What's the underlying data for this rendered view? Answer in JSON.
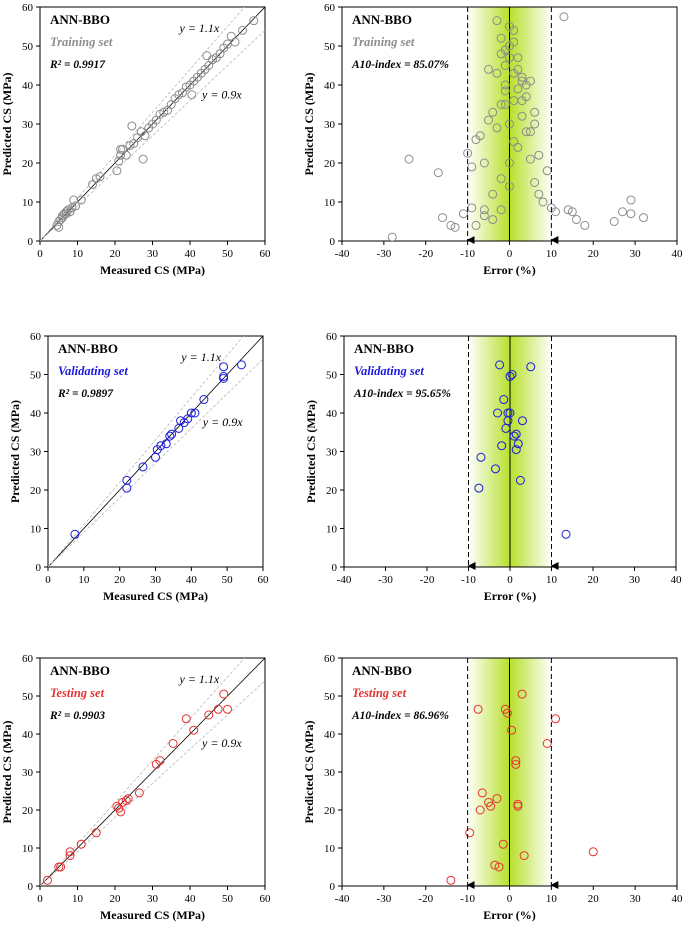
{
  "chart_data": [
    {
      "type": "scatter",
      "model_label": "ANN-BBO",
      "set_label": "Training set",
      "stat_label": "R² = 0.9917",
      "line_labels": {
        "upper": "y = 1.1x",
        "lower": "y = 0.9x"
      },
      "xlabel": "Measured CS (MPa)",
      "ylabel": "Predicted CS (MPa)",
      "xlim": [
        0,
        60
      ],
      "ylim": [
        0,
        60
      ],
      "xticks": [
        "0",
        "10",
        "20",
        "30",
        "40",
        "50",
        "60"
      ],
      "yticks": [
        "0",
        "10",
        "20",
        "30",
        "40",
        "50",
        "60"
      ],
      "color": "#8c8c8c",
      "x": [
        4.5,
        5.0,
        5.5,
        6.0,
        6.5,
        7.0,
        7.5,
        8.0,
        8.5,
        9.0,
        9.5,
        6.0,
        7.0,
        8.0,
        14.0,
        15.0,
        16.0,
        20.5,
        21.0,
        21.5,
        22.0,
        23.0,
        24.0,
        25.0,
        26.0,
        27.0,
        28.0,
        29.0,
        30.0,
        31.0,
        32.0,
        33.0,
        34.0,
        35.0,
        36.0,
        37.0,
        38.0,
        39.0,
        40.0,
        41.0,
        42.0,
        43.0,
        44.0,
        45.0,
        46.0,
        47.0,
        48.0,
        49.0,
        50.0,
        51.0,
        52.0,
        54.0,
        57.0,
        40.5,
        44.5,
        27.5,
        24.5,
        21.5,
        11.0,
        5.0
      ],
      "y": [
        4.0,
        5.0,
        5.5,
        6.5,
        7.0,
        7.5,
        8.0,
        7.5,
        8.5,
        10.5,
        9.0,
        6.0,
        7.0,
        7.5,
        14.5,
        16.0,
        16.5,
        18.0,
        20.5,
        22.0,
        23.5,
        22.0,
        24.5,
        25.0,
        26.5,
        28.0,
        27.0,
        29.0,
        30.0,
        31.0,
        32.5,
        33.0,
        33.5,
        35.0,
        36.5,
        37.5,
        38.0,
        39.5,
        40.0,
        41.0,
        42.0,
        43.0,
        44.0,
        45.0,
        46.5,
        47.0,
        48.0,
        49.5,
        50.5,
        52.5,
        51.0,
        54.0,
        56.5,
        37.5,
        47.5,
        21.0,
        29.5,
        23.5,
        10.5,
        3.5
      ]
    },
    {
      "type": "scatter",
      "model_label": "ANN-BBO",
      "set_label": "Training set",
      "stat_label": "A10-index = 85.07%",
      "xlabel": "Error (%)",
      "ylabel": "Predicted CS (MPa)",
      "xlim": [
        -40,
        40
      ],
      "ylim": [
        0,
        60
      ],
      "xticks": [
        "-40",
        "-30",
        "-20",
        "-10",
        "0",
        "10",
        "20",
        "30",
        "40"
      ],
      "yticks": [
        "0",
        "10",
        "20",
        "30",
        "40",
        "50",
        "60"
      ],
      "color": "#8c8c8c",
      "x": [
        -28,
        -24,
        -17,
        -16,
        -14,
        -13,
        -10,
        -9,
        -8,
        -7,
        -6,
        -5,
        -4,
        -3,
        -2,
        -1,
        0,
        1,
        2,
        3,
        4,
        5,
        6,
        -6,
        -4,
        -2,
        0,
        2,
        4,
        6,
        8,
        -3,
        -1,
        1,
        3,
        5,
        7,
        9,
        -5,
        -2,
        0,
        2,
        4,
        6,
        -8,
        -6,
        -4,
        -2,
        0,
        1,
        3,
        5,
        7,
        -1,
        0,
        1,
        2,
        3,
        -3,
        -2,
        -1,
        0,
        13,
        14,
        15,
        16,
        18,
        25,
        27,
        29,
        29,
        32,
        -11,
        -9,
        10,
        11,
        -1,
        1
      ],
      "y": [
        1.0,
        21.0,
        17.5,
        6.0,
        4.0,
        3.5,
        22.5,
        19.0,
        26.0,
        27.0,
        20.0,
        31.0,
        33.0,
        29.0,
        35.0,
        45.0,
        47.0,
        43.0,
        39.0,
        36.0,
        37.0,
        41.0,
        33.0,
        8.0,
        12.0,
        16.0,
        20.0,
        24.0,
        28.0,
        15.0,
        10.0,
        43.0,
        49.0,
        51.0,
        41.0,
        28.0,
        22.0,
        18.0,
        44.0,
        48.0,
        50.0,
        44.0,
        40.0,
        30.0,
        4.0,
        6.5,
        5.5,
        8.0,
        14.0,
        25.5,
        32.0,
        21.0,
        12.0,
        38.5,
        55.0,
        54.0,
        47.0,
        42.0,
        56.5,
        52.0,
        40.0,
        30.0,
        57.5,
        8.0,
        7.5,
        5.5,
        4.0,
        5.0,
        7.5,
        7.0,
        10.5,
        6.0,
        7.0,
        8.5,
        8.5,
        7.5,
        35.0,
        36.0
      ]
    },
    {
      "type": "scatter",
      "model_label": "ANN-BBO",
      "set_label": "Validating set",
      "stat_label": "R² = 0.9897",
      "line_labels": {
        "upper": "y = 1.1x",
        "lower": "y = 0.9x"
      },
      "xlabel": "Measured CS (MPa)",
      "ylabel": "Predicted CS (MPa)",
      "xlim": [
        0,
        60
      ],
      "ylim": [
        0,
        60
      ],
      "xticks": [
        "0",
        "10",
        "20",
        "30",
        "40",
        "50",
        "60"
      ],
      "yticks": [
        "0",
        "10",
        "20",
        "30",
        "40",
        "50",
        "60"
      ],
      "color": "#1a1adf",
      "x": [
        7.5,
        22.0,
        22.0,
        26.5,
        30.0,
        30.5,
        31.5,
        33.0,
        34.0,
        34.5,
        36.5,
        37.0,
        38.0,
        39.0,
        40.0,
        41.0,
        43.5,
        49.0,
        49.0,
        49.0,
        54.0
      ],
      "y": [
        8.5,
        20.5,
        22.5,
        26.0,
        28.5,
        30.5,
        31.5,
        32.0,
        34.0,
        34.5,
        36.0,
        38.0,
        37.5,
        38.5,
        40.0,
        40.0,
        43.5,
        49.0,
        49.5,
        52.0,
        52.5
      ]
    },
    {
      "type": "scatter",
      "model_label": "ANN-BBO",
      "set_label": "Validating set",
      "stat_label": "A10-index = 95.65%",
      "xlabel": "Error (%)",
      "ylabel": "Predicted CS (MPa)",
      "xlim": [
        -40,
        40
      ],
      "ylim": [
        0,
        60
      ],
      "xticks": [
        "-40",
        "-30",
        "-20",
        "-10",
        "0",
        "10",
        "20",
        "30",
        "40"
      ],
      "yticks": [
        "0",
        "10",
        "20",
        "30",
        "40",
        "50",
        "60"
      ],
      "color": "#1a1adf",
      "x": [
        -7.5,
        -7.0,
        -3.5,
        -3.0,
        -2.5,
        -2.0,
        -1.5,
        -1.0,
        -0.5,
        -0.5,
        0.0,
        0.0,
        0.5,
        1.0,
        1.5,
        1.5,
        2.0,
        2.5,
        3.0,
        5.0,
        13.5
      ],
      "y": [
        20.5,
        28.5,
        25.5,
        40.0,
        52.5,
        31.5,
        43.5,
        36.0,
        40.0,
        38.0,
        49.5,
        40.0,
        50.0,
        34.0,
        34.5,
        30.5,
        32.0,
        22.5,
        38.0,
        52.0,
        8.5
      ]
    },
    {
      "type": "scatter",
      "model_label": "ANN-BBO",
      "set_label": "Testing set",
      "stat_label": "R² = 0.9903",
      "line_labels": {
        "upper": "y = 1.1x",
        "lower": "y = 0.9x"
      },
      "xlabel": "Measured CS (MPa)",
      "ylabel": "Predicted CS (MPa)",
      "xlim": [
        0,
        60
      ],
      "ylim": [
        0,
        60
      ],
      "xticks": [
        "0",
        "10",
        "20",
        "30",
        "40",
        "50",
        "60"
      ],
      "yticks": [
        "0",
        "10",
        "20",
        "30",
        "40",
        "50",
        "60"
      ],
      "color": "#e63232",
      "x": [
        2.0,
        5.0,
        5.5,
        8.0,
        8.0,
        11.0,
        15.0,
        20.5,
        21.0,
        21.5,
        22.0,
        23.0,
        23.5,
        26.5,
        31.0,
        32.0,
        35.5,
        39.0,
        41.0,
        45.0,
        47.5,
        49.0,
        50.0
      ],
      "y": [
        1.5,
        5.0,
        5.0,
        8.0,
        9.0,
        11.0,
        14.0,
        21.0,
        20.5,
        19.5,
        22.0,
        22.5,
        23.0,
        24.5,
        32.0,
        33.0,
        37.5,
        44.0,
        41.0,
        45.0,
        46.5,
        50.5,
        46.5
      ]
    },
    {
      "type": "scatter",
      "model_label": "ANN-BBO",
      "set_label": "Testing set",
      "stat_label": "A10-index = 86.96%",
      "xlabel": "Error (%)",
      "ylabel": "Predicted CS (MPa)",
      "xlim": [
        -40,
        40
      ],
      "ylim": [
        0,
        60
      ],
      "xticks": [
        "-40",
        "-30",
        "-20",
        "-10",
        "0",
        "10",
        "20",
        "30",
        "40"
      ],
      "yticks": [
        "0",
        "10",
        "20",
        "30",
        "40",
        "50",
        "60"
      ],
      "color": "#e63232",
      "x": [
        -14.0,
        -9.5,
        -7.5,
        -7.0,
        -6.5,
        -5.0,
        -4.5,
        -3.0,
        -2.5,
        -1.5,
        -1.0,
        -0.5,
        0.5,
        1.5,
        1.5,
        2.0,
        2.0,
        3.0,
        3.5,
        9.0,
        11.0,
        20.0,
        -3.5
      ],
      "y": [
        1.5,
        14.0,
        46.5,
        20.0,
        24.5,
        22.0,
        21.0,
        23.0,
        5.0,
        11.0,
        46.5,
        45.5,
        41.0,
        32.0,
        33.0,
        21.5,
        21.0,
        50.5,
        8.0,
        37.5,
        44.0,
        9.0,
        5.5
      ]
    }
  ]
}
